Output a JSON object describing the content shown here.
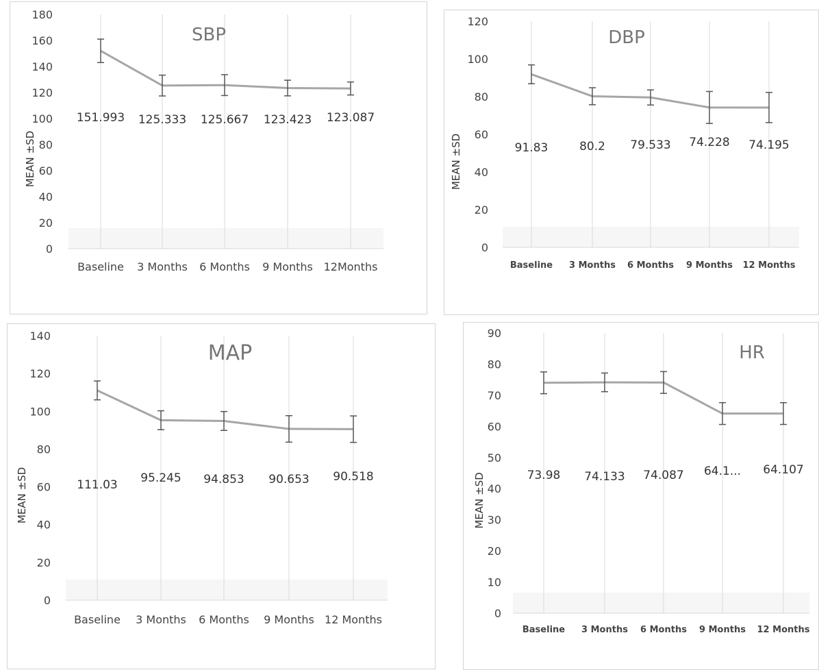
{
  "chart_data": [
    {
      "id": "sbp",
      "type": "line",
      "title": "SBP",
      "xlabel": "",
      "ylabel": "MEAN ±SD",
      "categories": [
        "Baseline",
        "3 Months",
        "6 Months",
        "9 Months",
        "12Months"
      ],
      "series": [
        {
          "values": [
            151.993,
            125.333,
            125.667,
            123.423,
            123.087
          ],
          "error": [
            9,
            8,
            8,
            6,
            5
          ]
        }
      ],
      "data_labels": [
        "151.993",
        "125.333",
        "125.667",
        "123.423",
        "123.087"
      ],
      "ylim": [
        0,
        180
      ],
      "yticks": [
        0,
        20,
        40,
        60,
        80,
        100,
        120,
        140,
        160,
        180
      ],
      "grid": "vertical",
      "line_color": "#a6a6a6"
    },
    {
      "id": "dbp",
      "type": "line",
      "title": "DBP",
      "xlabel": "",
      "ylabel": "MEAN ±SD",
      "categories": [
        "Baseline",
        "3 Months",
        "6 Months",
        "9 Months",
        "12 Months"
      ],
      "series": [
        {
          "values": [
            91.83,
            80.2,
            79.533,
            74.228,
            74.195
          ],
          "error": [
            5,
            4.5,
            4,
            8.5,
            8
          ]
        }
      ],
      "data_labels": [
        "91.83",
        "80.2",
        "79.533",
        "74.228",
        "74.195"
      ],
      "ylim": [
        0,
        120
      ],
      "yticks": [
        0,
        20,
        40,
        60,
        80,
        100,
        120
      ],
      "grid": "vertical",
      "line_color": "#a6a6a6"
    },
    {
      "id": "map",
      "type": "line",
      "title": "MAP",
      "xlabel": "",
      "ylabel": "MEAN ±SD",
      "categories": [
        "Baseline",
        "3 Months",
        "6 Months",
        "9 Months",
        "12 Months"
      ],
      "series": [
        {
          "values": [
            111.03,
            95.245,
            94.853,
            90.653,
            90.518
          ],
          "error": [
            5,
            5,
            5,
            7,
            7
          ]
        }
      ],
      "data_labels": [
        "111.03",
        "95.245",
        "94.853",
        "90.653",
        "90.518"
      ],
      "ylim": [
        0,
        140
      ],
      "yticks": [
        0,
        20,
        40,
        60,
        80,
        100,
        120,
        140
      ],
      "grid": "vertical",
      "line_color": "#a6a6a6"
    },
    {
      "id": "hr",
      "type": "line",
      "title": "HR",
      "xlabel": "",
      "ylabel": "MEAN ±SD",
      "categories": [
        "Baseline",
        "3 Months",
        "6 Months",
        "9 Months",
        "12 Months"
      ],
      "series": [
        {
          "values": [
            73.98,
            74.133,
            74.087,
            64.107,
            64.107
          ],
          "error": [
            3.5,
            3,
            3.5,
            3.5,
            3.5
          ]
        }
      ],
      "data_labels": [
        "73.98",
        "74.133",
        "74.087",
        "64.1...",
        "64.107"
      ],
      "ylim": [
        0,
        90
      ],
      "yticks": [
        0,
        10,
        20,
        30,
        40,
        50,
        60,
        70,
        80,
        90
      ],
      "grid": "vertical",
      "line_color": "#a6a6a6"
    }
  ]
}
